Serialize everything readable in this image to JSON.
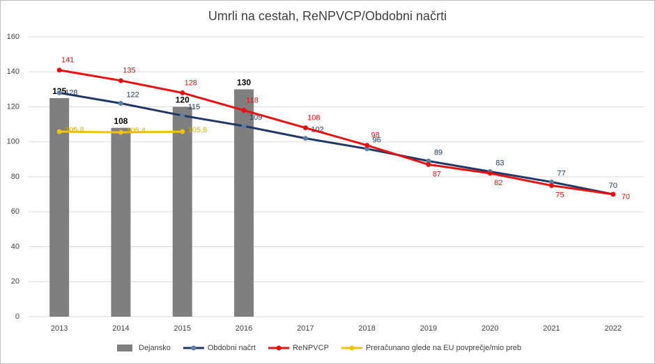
{
  "chart_data": {
    "type": "bar",
    "title": "Umrli na cestah, ReNPVCP/Obdobni načrti",
    "categories": [
      "2013",
      "2014",
      "2015",
      "2016",
      "2017",
      "2018",
      "2019",
      "2020",
      "2021",
      "2022"
    ],
    "series": [
      {
        "name": "Dejansko",
        "type": "bar",
        "color": "#7f7f7f",
        "values": [
          125,
          108,
          120,
          130,
          null,
          null,
          null,
          null,
          null,
          null
        ]
      },
      {
        "name": "Obdobni načrt",
        "type": "line",
        "color": "#1f3864",
        "marker": "#5b7fa6",
        "values": [
          128,
          122,
          115,
          109,
          102,
          96,
          89,
          83,
          77,
          70
        ]
      },
      {
        "name": "ReNPVCP",
        "type": "line",
        "color": "#e81010",
        "marker": "#e81010",
        "values": [
          141,
          135,
          128,
          118,
          108,
          98,
          87,
          82,
          75,
          70
        ]
      },
      {
        "name": "Preračunano glede na EU povprečje/mio preb",
        "type": "line",
        "color": "#f2c20c",
        "marker": "#f2c20c",
        "values": [
          105.8,
          105.4,
          105.8,
          null,
          null,
          null,
          null,
          null,
          null,
          null
        ],
        "value_labels": [
          "105,8",
          "105,4",
          "105,8",
          null,
          null,
          null,
          null,
          null,
          null,
          null
        ]
      }
    ],
    "ylim": [
      0,
      160
    ],
    "yticks": [
      0,
      20,
      40,
      60,
      80,
      100,
      120,
      140,
      160
    ],
    "grid": true
  }
}
